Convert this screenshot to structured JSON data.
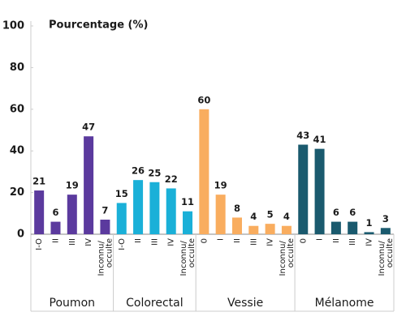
{
  "chart_data": {
    "type": "bar",
    "y_label": "Pourcentage (%)",
    "ylim": [
      0,
      100
    ],
    "yticks": [
      0,
      20,
      40,
      60,
      80,
      100
    ],
    "series": [
      {
        "name": "Poumon",
        "color": "#5b3a9e",
        "categories": [
          "I-O",
          "II",
          "III",
          "IV",
          "Inconnu/ occulte"
        ],
        "values": [
          21,
          6,
          19,
          47,
          7
        ]
      },
      {
        "name": "Colorectal",
        "color": "#1ab0d8",
        "categories": [
          "I-O",
          "II",
          "III",
          "IV",
          "Inconnu/ occulte"
        ],
        "values": [
          15,
          26,
          25,
          22,
          11
        ]
      },
      {
        "name": "Vessie",
        "color": "#f9ad5f",
        "categories": [
          "0",
          "I",
          "II",
          "III",
          "IV",
          "Inconnu/ occulte"
        ],
        "values": [
          60,
          19,
          8,
          4,
          5,
          4
        ]
      },
      {
        "name": "Mélanome",
        "color": "#1a5a6e",
        "categories": [
          "0",
          "I",
          "II",
          "III",
          "IV",
          "Inconnu/ occulte"
        ],
        "values": [
          43,
          41,
          6,
          6,
          1,
          3
        ]
      }
    ]
  }
}
